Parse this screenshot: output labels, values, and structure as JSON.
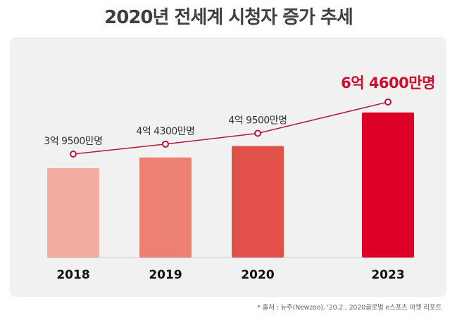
{
  "chart_data": {
    "type": "bar",
    "title": "2020년 전세계 시청자 증가 추세",
    "xlabel": "",
    "ylabel": "",
    "unit": "억 명",
    "categories": [
      "2018",
      "2019",
      "2020",
      "2023"
    ],
    "values": [
      3.95,
      4.43,
      4.95,
      6.46
    ],
    "data_labels": [
      "3억 9500만명",
      "4억 4300만명",
      "4억 9500만명",
      "6억 4600만명"
    ],
    "highlight_index": 3,
    "bar_colors": [
      "#f1ada0",
      "#ec8073",
      "#e2504a",
      "#dc0026"
    ],
    "line_color": "#b5163a",
    "overlay_line": true,
    "grid": false,
    "legend": "none",
    "source_note": "* 출처 : 뉴주(Newzoo), '20.2., 2020글로벌 e스포츠 마켓 리포트"
  },
  "colors": {
    "title": "#3f3f3f",
    "panel_bg": "#f1f1f1",
    "highlight_text": "#c8102e",
    "baseline": "#cccccc"
  }
}
